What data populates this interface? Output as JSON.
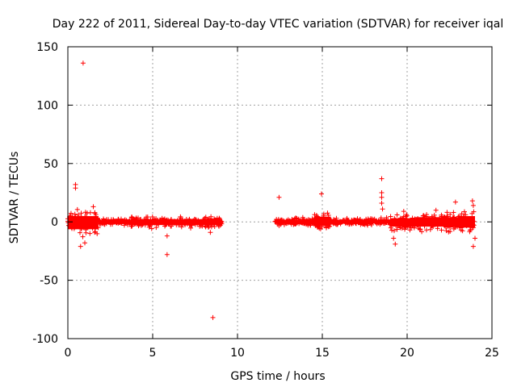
{
  "chart_data": {
    "type": "scatter",
    "title": "Day 222 of 2011, Sidereal Day-to-day VTEC variation (SDTVAR) for receiver iqal",
    "xlabel": "GPS time / hours",
    "ylabel": "SDTVAR / TECUs",
    "xlim": [
      0,
      25
    ],
    "ylim": [
      -100,
      150
    ],
    "xticks": [
      0,
      5,
      10,
      15,
      20,
      25
    ],
    "yticks": [
      -100,
      -50,
      0,
      50,
      100,
      150
    ],
    "grid": true,
    "marker": "plus",
    "color": "#ff0000",
    "bands": [
      {
        "x": [
          0.0,
          1.8
        ],
        "y": [
          -14,
          11
        ]
      },
      {
        "x": [
          1.8,
          3.7
        ],
        "y": [
          -4,
          3
        ]
      },
      {
        "x": [
          3.7,
          9.1
        ],
        "y": [
          -6,
          5
        ]
      },
      {
        "x": [
          12.2,
          14.5
        ],
        "y": [
          -4,
          4
        ]
      },
      {
        "x": [
          14.5,
          15.5
        ],
        "y": [
          -8,
          10
        ]
      },
      {
        "x": [
          15.5,
          19.0
        ],
        "y": [
          -3,
          4
        ]
      },
      {
        "x": [
          19.0,
          20.5
        ],
        "y": [
          -9,
          7
        ]
      },
      {
        "x": [
          20.5,
          23.0
        ],
        "y": [
          -9,
          9
        ]
      },
      {
        "x": [
          23.0,
          24.0
        ],
        "y": [
          -11,
          11
        ]
      }
    ],
    "outliers": [
      [
        0.9,
        136
      ],
      [
        0.45,
        32
      ],
      [
        0.45,
        29
      ],
      [
        1.0,
        -18
      ],
      [
        0.75,
        -21
      ],
      [
        1.5,
        13
      ],
      [
        1.3,
        -10
      ],
      [
        5.85,
        -28
      ],
      [
        5.85,
        -12
      ],
      [
        8.55,
        -82
      ],
      [
        8.4,
        -9
      ],
      [
        12.45,
        21
      ],
      [
        14.95,
        24
      ],
      [
        14.9,
        -6
      ],
      [
        18.5,
        37
      ],
      [
        18.5,
        25
      ],
      [
        18.5,
        21
      ],
      [
        18.5,
        16
      ],
      [
        18.55,
        11
      ],
      [
        19.3,
        -19
      ],
      [
        19.2,
        -14
      ],
      [
        19.8,
        9
      ],
      [
        19.6,
        -5
      ],
      [
        21.7,
        10
      ],
      [
        22.85,
        17
      ],
      [
        23.85,
        18
      ],
      [
        23.9,
        -21
      ],
      [
        24.0,
        -14
      ],
      [
        23.9,
        14
      ]
    ]
  }
}
